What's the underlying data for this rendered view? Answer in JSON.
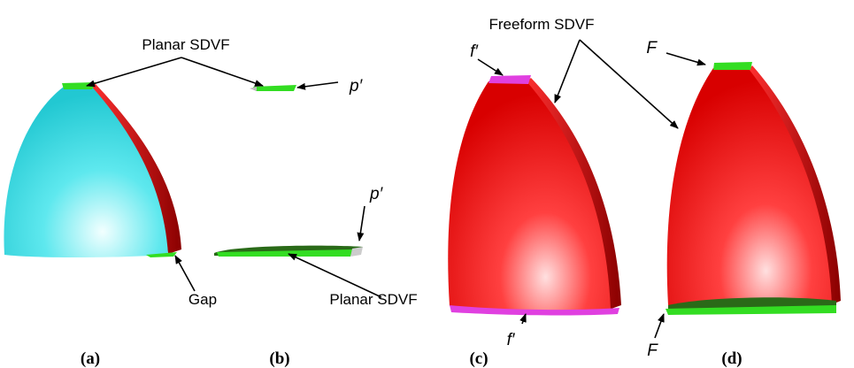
{
  "annotations": {
    "planar_sdvf_top": "Planar SDVF",
    "p_prime_top": "p′",
    "p_prime_bottom": "p′",
    "gap": "Gap",
    "planar_sdvf_bottom": "Planar SDVF",
    "freeform_sdvf": "Freeform SDVF",
    "f_prime_top": "f′",
    "f_prime_bottom": "f′",
    "F_top": "F",
    "F_bottom": "F"
  },
  "captions": [
    "(a)",
    "(b)",
    "(c)",
    "(d)"
  ]
}
